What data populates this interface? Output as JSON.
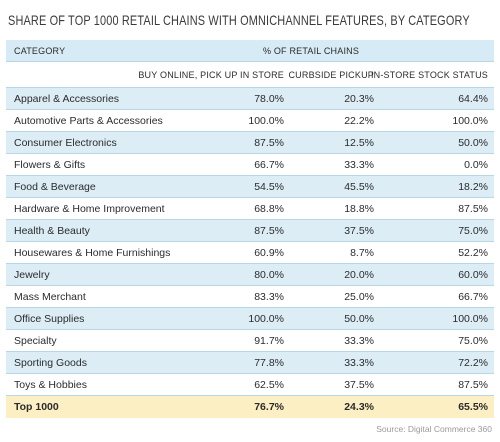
{
  "title": "SHARE OF TOP 1000 RETAIL CHAINS WITH OMNICHANNEL FEATURES, BY CATEGORY",
  "table": {
    "header": {
      "category": "CATEGORY",
      "group": "% OF RETAIL CHAINS",
      "columns": [
        "BUY ONLINE, PICK UP IN STORE",
        "CURBSIDE PICKUP",
        "IN-STORE STOCK STATUS"
      ]
    },
    "rows": [
      [
        "Apparel & Accessories",
        "78.0%",
        "20.3%",
        "64.4%"
      ],
      [
        "Automotive Parts & Accessories",
        "100.0%",
        "22.2%",
        "100.0%"
      ],
      [
        "Consumer Electronics",
        "87.5%",
        "12.5%",
        "50.0%"
      ],
      [
        "Flowers & Gifts",
        "66.7%",
        "33.3%",
        "0.0%"
      ],
      [
        "Food & Beverage",
        "54.5%",
        "45.5%",
        "18.2%"
      ],
      [
        "Hardware & Home Improvement",
        "68.8%",
        "18.8%",
        "87.5%"
      ],
      [
        "Health & Beauty",
        "87.5%",
        "37.5%",
        "75.0%"
      ],
      [
        "Housewares & Home Furnishings",
        "60.9%",
        "8.7%",
        "52.2%"
      ],
      [
        "Jewelry",
        "80.0%",
        "20.0%",
        "60.0%"
      ],
      [
        "Mass Merchant",
        "83.3%",
        "25.0%",
        "66.7%"
      ],
      [
        "Office Supplies",
        "100.0%",
        "50.0%",
        "100.0%"
      ],
      [
        "Specialty",
        "91.7%",
        "33.3%",
        "75.0%"
      ],
      [
        "Sporting Goods",
        "77.8%",
        "33.3%",
        "72.2%"
      ],
      [
        "Toys & Hobbies",
        "62.5%",
        "37.5%",
        "87.5%"
      ]
    ],
    "total": [
      "Top 1000",
      "76.7%",
      "24.3%",
      "65.5%"
    ]
  },
  "source": "Source: Digital Commerce 360"
}
